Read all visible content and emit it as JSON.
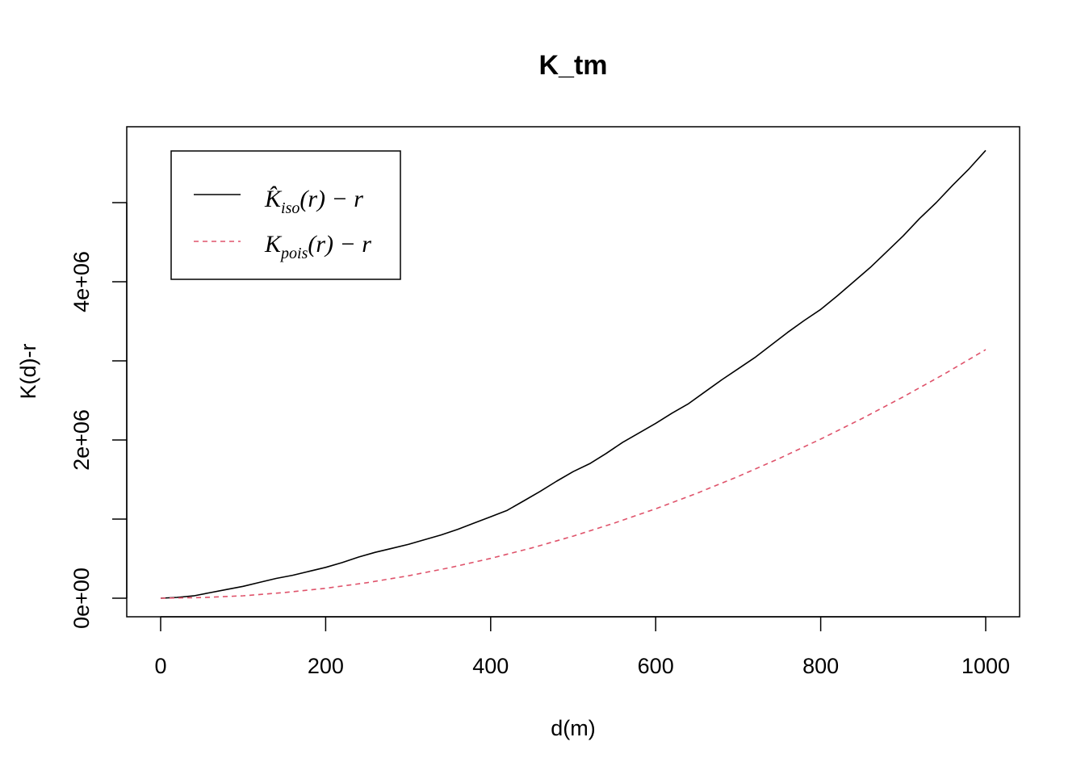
{
  "chart_data": {
    "type": "line",
    "title": "K_tm",
    "xlabel": "d(m)",
    "ylabel": "K(d)-r",
    "xlim": [
      0,
      1000
    ],
    "ylim": [
      0,
      4900000
    ],
    "x_ticks": [
      0,
      200,
      400,
      600,
      800,
      1000
    ],
    "x_tick_labels": [
      "0",
      "200",
      "400",
      "600",
      "800",
      "1000"
    ],
    "y_ticks": [
      0,
      2000000,
      4000000
    ],
    "y_tick_labels": [
      "0e+00",
      "2e+06",
      "4e+06"
    ],
    "y_minor_ticks": [
      1000000,
      3000000,
      5000000
    ],
    "grid": false,
    "legend_position": "top-left",
    "legend": {
      "iso": {
        "main": "K̂",
        "sub": "iso",
        "rest": "(r) − r"
      },
      "pois": {
        "main": "K",
        "sub": "pois",
        "rest": "(r) − r"
      }
    },
    "series": [
      {
        "key": "iso",
        "color": "#000000",
        "dash": "solid",
        "x": [
          0,
          20,
          40,
          60,
          80,
          100,
          120,
          140,
          160,
          180,
          200,
          220,
          240,
          260,
          280,
          300,
          320,
          340,
          360,
          380,
          400,
          420,
          440,
          460,
          480,
          500,
          520,
          540,
          560,
          580,
          600,
          620,
          640,
          660,
          680,
          700,
          720,
          740,
          760,
          780,
          800,
          820,
          840,
          860,
          880,
          900,
          920,
          940,
          960,
          980,
          1000
        ],
        "y": [
          0,
          10000,
          30000,
          70000,
          110000,
          150000,
          200000,
          250000,
          290000,
          340000,
          390000,
          450000,
          520000,
          580000,
          630000,
          680000,
          740000,
          800000,
          870000,
          950000,
          1030000,
          1110000,
          1230000,
          1350000,
          1480000,
          1600000,
          1700000,
          1830000,
          1970000,
          2090000,
          2210000,
          2340000,
          2460000,
          2610000,
          2760000,
          2900000,
          3040000,
          3200000,
          3360000,
          3510000,
          3650000,
          3820000,
          4000000,
          4180000,
          4380000,
          4580000,
          4800000,
          5000000,
          5220000,
          5430000,
          5660000
        ]
      },
      {
        "key": "pois",
        "color": "#DF536B",
        "dash": "dashed",
        "x": [
          0,
          50,
          100,
          150,
          200,
          250,
          300,
          350,
          400,
          450,
          500,
          550,
          600,
          650,
          700,
          750,
          800,
          850,
          900,
          950,
          1000
        ],
        "y": [
          0,
          8000,
          31000,
          71000,
          126000,
          196000,
          283000,
          385000,
          503000,
          636000,
          785000,
          950000,
          1131000,
          1327000,
          1539000,
          1767000,
          2011000,
          2270000,
          2545000,
          2835000,
          3142000
        ]
      }
    ]
  }
}
